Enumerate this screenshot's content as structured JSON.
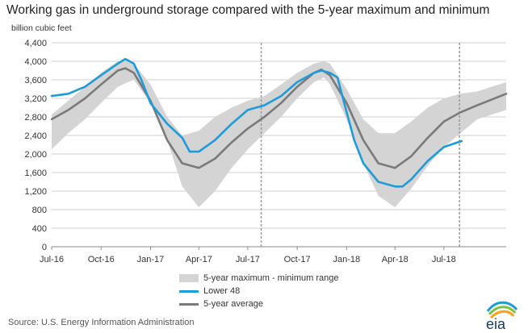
{
  "title": "Working gas in underground  storage compared with the 5-year maximum and minimum",
  "unit_label": "billion cubic feet",
  "legend": {
    "range": "5-year maximum - minimum range",
    "lower48": "Lower 48",
    "avg": "5-year average"
  },
  "source": "Source:  U.S. Energy Information Administration",
  "logo_text": "eia",
  "colors": {
    "lower48": "#1f9bd7",
    "avg": "#7a7a7a",
    "range": "#d4d4d4",
    "grid": "#cfcfcf",
    "marker": "#9a9a9a"
  },
  "chart_data": {
    "type": "area",
    "x_unit": "date",
    "xlim": [
      "2016-07-01",
      "2018-10-25"
    ],
    "ylim": [
      0,
      4400
    ],
    "yticks": [
      0,
      400,
      800,
      1200,
      1600,
      2000,
      2400,
      2800,
      3200,
      3600,
      4000,
      4400
    ],
    "ytick_labels": [
      "0",
      "400",
      "800",
      "1,200",
      "1,600",
      "2,000",
      "2,400",
      "2,800",
      "3,200",
      "3,600",
      "4,000",
      "4,400"
    ],
    "xticks": [
      "2016-07-01",
      "2016-10-01",
      "2017-01-01",
      "2017-04-01",
      "2017-07-01",
      "2017-10-01",
      "2018-01-01",
      "2018-04-01",
      "2018-07-01"
    ],
    "xtick_labels": [
      "Jul-16",
      "Oct-16",
      "Jan-17",
      "Apr-17",
      "Jul-17",
      "Oct-17",
      "Jan-18",
      "Apr-18",
      "Jul-18"
    ],
    "grid": true,
    "vertical_markers": [
      "2017-07-26",
      "2018-07-30"
    ],
    "series": [
      {
        "name": "5-year maximum - minimum range",
        "type": "band",
        "x": [
          "2016-07-01",
          "2016-08-01",
          "2016-09-01",
          "2016-10-01",
          "2016-11-01",
          "2016-11-20",
          "2016-12-01",
          "2017-01-01",
          "2017-02-01",
          "2017-03-01",
          "2017-04-01",
          "2017-05-01",
          "2017-06-01",
          "2017-07-01",
          "2017-08-01",
          "2017-09-01",
          "2017-10-01",
          "2017-11-01",
          "2017-11-20",
          "2017-12-01",
          "2018-01-01",
          "2018-02-01",
          "2018-03-01",
          "2018-04-01",
          "2018-05-01",
          "2018-06-01",
          "2018-07-01",
          "2018-08-01",
          "2018-09-01",
          "2018-10-25"
        ],
        "upper": [
          2850,
          3150,
          3450,
          3750,
          4000,
          4050,
          3950,
          3500,
          2800,
          2400,
          2500,
          2800,
          3000,
          3150,
          3250,
          3500,
          3750,
          3950,
          4000,
          3950,
          3400,
          2750,
          2450,
          2450,
          2700,
          3000,
          3200,
          3300,
          3350,
          3550
        ],
        "lower": [
          2100,
          2450,
          2750,
          3100,
          3450,
          3550,
          3600,
          3100,
          2300,
          1300,
          850,
          1200,
          1700,
          2100,
          2450,
          2800,
          3200,
          3550,
          3650,
          3500,
          2750,
          1800,
          1100,
          850,
          1250,
          1750,
          2150,
          2450,
          2750,
          2950
        ]
      },
      {
        "name": "Lower 48",
        "x": [
          "2016-07-01",
          "2016-08-01",
          "2016-09-01",
          "2016-10-01",
          "2016-11-01",
          "2016-11-15",
          "2016-12-01",
          "2016-12-15",
          "2017-01-01",
          "2017-02-01",
          "2017-03-01",
          "2017-03-15",
          "2017-04-01",
          "2017-05-01",
          "2017-06-01",
          "2017-07-01",
          "2017-08-01",
          "2017-09-01",
          "2017-10-01",
          "2017-11-01",
          "2017-11-15",
          "2017-12-01",
          "2017-12-15",
          "2018-01-01",
          "2018-01-15",
          "2018-02-01",
          "2018-03-01",
          "2018-04-01",
          "2018-04-15",
          "2018-05-01",
          "2018-06-01",
          "2018-07-01",
          "2018-08-03"
        ],
        "y": [
          3250,
          3300,
          3450,
          3700,
          3950,
          4050,
          3950,
          3600,
          3100,
          2650,
          2350,
          2050,
          2050,
          2300,
          2650,
          2950,
          3050,
          3250,
          3550,
          3750,
          3800,
          3750,
          3650,
          2900,
          2300,
          1800,
          1400,
          1300,
          1300,
          1450,
          1850,
          2150,
          2280
        ]
      },
      {
        "name": "5-year average",
        "x": [
          "2016-07-01",
          "2016-08-01",
          "2016-09-01",
          "2016-10-01",
          "2016-11-01",
          "2016-11-15",
          "2016-12-01",
          "2017-01-01",
          "2017-02-01",
          "2017-03-01",
          "2017-04-01",
          "2017-05-01",
          "2017-06-01",
          "2017-07-01",
          "2017-08-01",
          "2017-09-01",
          "2017-10-01",
          "2017-11-01",
          "2017-11-15",
          "2017-12-01",
          "2018-01-01",
          "2018-02-01",
          "2018-03-01",
          "2018-04-01",
          "2018-05-01",
          "2018-06-01",
          "2018-07-01",
          "2018-08-01",
          "2018-09-01",
          "2018-10-25"
        ],
        "y": [
          2750,
          2950,
          3200,
          3500,
          3800,
          3850,
          3750,
          3150,
          2300,
          1800,
          1700,
          1900,
          2250,
          2550,
          2800,
          3100,
          3450,
          3750,
          3820,
          3700,
          3100,
          2300,
          1800,
          1700,
          1950,
          2350,
          2700,
          2900,
          3050,
          3300
        ]
      }
    ]
  }
}
